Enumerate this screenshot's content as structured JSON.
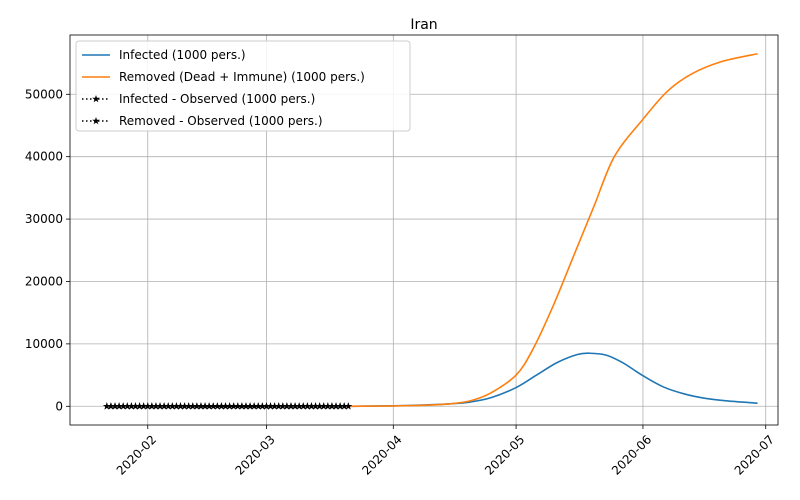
{
  "chart_data": {
    "type": "line",
    "title": "Iran",
    "xlabel": "",
    "ylabel": "",
    "x_axis": {
      "kind": "date",
      "range": [
        "2020-01-13",
        "2020-07-04"
      ],
      "ticks": [
        "2020-02-01",
        "2020-03-01",
        "2020-04-01",
        "2020-05-01",
        "2020-06-01",
        "2020-07-01"
      ],
      "tick_labels": [
        "2020-02",
        "2020-03",
        "2020-04",
        "2020-05",
        "2020-06",
        "2020-07"
      ],
      "tick_rotation_deg": 45
    },
    "y_axis": {
      "range": [
        -3000,
        59500
      ],
      "ticks": [
        0,
        10000,
        20000,
        30000,
        40000,
        50000
      ],
      "tick_labels": [
        "0",
        "10000",
        "20000",
        "30000",
        "40000",
        "50000"
      ]
    },
    "grid": true,
    "legend": {
      "placement": "top-left",
      "entries": [
        "Infected (1000 pers.)",
        "Removed (Dead + Immune) (1000 pers.)",
        "Infected - Observed (1000 pers.)",
        "Removed - Observed (1000 pers.)"
      ]
    },
    "series": [
      {
        "name": "Infected (1000 pers.)",
        "color": "#1f77b4",
        "style": "solid",
        "points": [
          [
            "2020-03-21",
            0
          ],
          [
            "2020-04-01",
            80
          ],
          [
            "2020-04-08",
            200
          ],
          [
            "2020-04-15",
            400
          ],
          [
            "2020-04-20",
            700
          ],
          [
            "2020-04-25",
            1400
          ],
          [
            "2020-05-01",
            3000
          ],
          [
            "2020-05-06",
            5000
          ],
          [
            "2020-05-11",
            7000
          ],
          [
            "2020-05-16",
            8300
          ],
          [
            "2020-05-19",
            8500
          ],
          [
            "2020-05-23",
            8200
          ],
          [
            "2020-05-27",
            7000
          ],
          [
            "2020-06-01",
            4900
          ],
          [
            "2020-06-06",
            3100
          ],
          [
            "2020-06-11",
            2000
          ],
          [
            "2020-06-16",
            1300
          ],
          [
            "2020-06-21",
            900
          ],
          [
            "2020-06-29",
            500
          ]
        ]
      },
      {
        "name": "Removed (Dead + Immune) (1000 pers.)",
        "color": "#ff7f0e",
        "style": "solid",
        "points": [
          [
            "2020-03-21",
            0
          ],
          [
            "2020-04-01",
            60
          ],
          [
            "2020-04-08",
            150
          ],
          [
            "2020-04-15",
            400
          ],
          [
            "2020-04-20",
            900
          ],
          [
            "2020-04-25",
            2200
          ],
          [
            "2020-05-01",
            5000
          ],
          [
            "2020-05-05",
            9000
          ],
          [
            "2020-05-10",
            16000
          ],
          [
            "2020-05-15",
            24000
          ],
          [
            "2020-05-20",
            32000
          ],
          [
            "2020-05-25",
            40000
          ],
          [
            "2020-06-01",
            46000
          ],
          [
            "2020-06-07",
            50500
          ],
          [
            "2020-06-13",
            53300
          ],
          [
            "2020-06-20",
            55200
          ],
          [
            "2020-06-29",
            56500
          ]
        ]
      },
      {
        "name": "Infected - Observed (1000 pers.)",
        "color": "#000000",
        "style": "dotted-star",
        "start": "2020-01-22",
        "end": "2020-03-21",
        "value": 0
      },
      {
        "name": "Removed - Observed (1000 pers.)",
        "color": "#000000",
        "style": "dotted-star",
        "start": "2020-01-22",
        "end": "2020-03-21",
        "value": 0
      }
    ]
  }
}
